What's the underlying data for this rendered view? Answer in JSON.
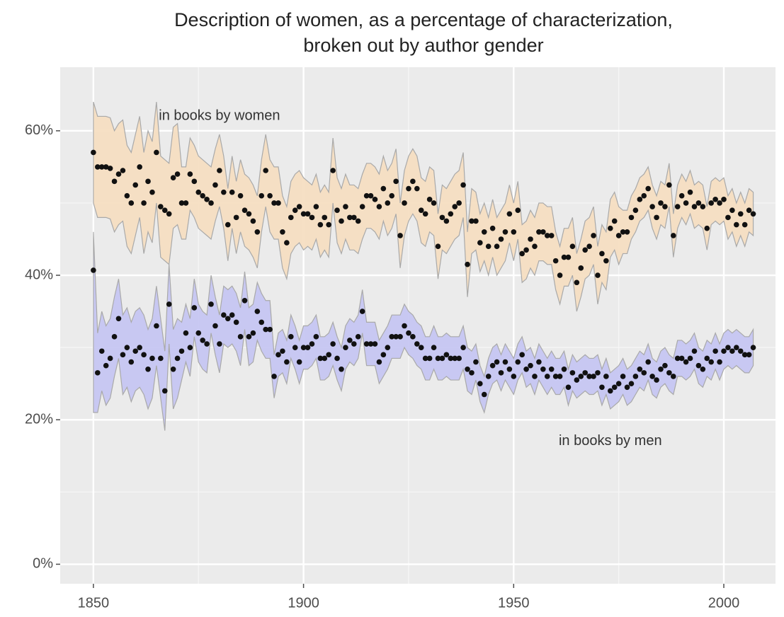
{
  "chart_data": {
    "type": "scatter",
    "title": [
      "Description of women, as a percentage of characterization,",
      "broken out by author gender"
    ],
    "xlim": [
      1842.1,
      2012.3
    ],
    "ylim": [
      -2.7,
      68.8
    ],
    "xticks": [
      1850,
      1900,
      1950,
      2000
    ],
    "yticks": [
      {
        "value": 0,
        "label": "0%"
      },
      {
        "value": 20,
        "label": "20%"
      },
      {
        "value": 40,
        "label": "40%"
      },
      {
        "value": 60,
        "label": "60%"
      }
    ],
    "xminor": [
      1875,
      1925,
      1975
    ],
    "yminor": [
      10,
      30,
      50
    ],
    "grid": true,
    "x": [
      1850,
      1851,
      1852,
      1853,
      1854,
      1855,
      1856,
      1857,
      1858,
      1859,
      1860,
      1861,
      1862,
      1863,
      1864,
      1865,
      1866,
      1867,
      1868,
      1869,
      1870,
      1871,
      1872,
      1873,
      1874,
      1875,
      1876,
      1877,
      1878,
      1879,
      1880,
      1881,
      1882,
      1883,
      1884,
      1885,
      1886,
      1887,
      1888,
      1889,
      1890,
      1891,
      1892,
      1893,
      1894,
      1895,
      1896,
      1897,
      1898,
      1899,
      1900,
      1901,
      1902,
      1903,
      1904,
      1905,
      1906,
      1907,
      1908,
      1909,
      1910,
      1911,
      1912,
      1913,
      1914,
      1915,
      1916,
      1917,
      1918,
      1919,
      1920,
      1921,
      1922,
      1923,
      1924,
      1925,
      1926,
      1927,
      1928,
      1929,
      1930,
      1931,
      1932,
      1933,
      1934,
      1935,
      1936,
      1937,
      1938,
      1939,
      1940,
      1941,
      1942,
      1943,
      1944,
      1945,
      1946,
      1947,
      1948,
      1949,
      1950,
      1951,
      1952,
      1953,
      1954,
      1955,
      1956,
      1957,
      1958,
      1959,
      1960,
      1961,
      1962,
      1963,
      1964,
      1965,
      1966,
      1967,
      1968,
      1969,
      1970,
      1971,
      1972,
      1973,
      1974,
      1975,
      1976,
      1977,
      1978,
      1979,
      1980,
      1981,
      1982,
      1983,
      1984,
      1985,
      1986,
      1987,
      1988,
      1989,
      1990,
      1991,
      1992,
      1993,
      1994,
      1995,
      1996,
      1997,
      1998,
      1999,
      2000,
      2001,
      2002,
      2003,
      2004,
      2005,
      2006,
      2007
    ],
    "series": [
      {
        "name": "in books by women",
        "label_pos": [
          1880,
          62
        ],
        "color": "#111111",
        "band_color": "#f6dec2",
        "values": [
          57,
          55,
          55,
          55,
          54.8,
          53,
          54,
          54.5,
          51,
          50,
          52.5,
          55,
          50,
          53,
          51.5,
          57,
          49.5,
          49,
          48.5,
          53.5,
          54,
          50,
          50,
          54,
          53,
          51.5,
          51,
          50.5,
          50,
          52.5,
          54.5,
          51.5,
          47,
          51.5,
          48,
          51,
          49,
          48.5,
          47.5,
          46,
          51,
          54.5,
          51,
          50,
          50,
          46,
          44.5,
          48,
          49,
          49.5,
          48.5,
          48.5,
          48,
          49.5,
          47,
          48,
          47,
          54.5,
          49,
          47.5,
          49.5,
          48,
          48,
          47.5,
          49.5,
          51,
          51,
          50.5,
          49.5,
          52,
          50,
          51,
          53,
          45.5,
          50,
          52,
          53,
          52,
          49,
          48.5,
          50.5,
          50,
          44,
          48,
          47.5,
          48.5,
          49.5,
          50,
          52.5,
          41.5,
          47.5,
          47.5,
          44.5,
          46,
          44,
          46.5,
          44,
          45,
          46,
          48.5,
          46,
          49,
          43,
          43.5,
          45,
          44,
          46,
          46,
          45.5,
          45.5,
          42,
          40,
          42.5,
          42.5,
          44,
          39,
          41,
          43.5,
          44,
          45.5,
          40,
          43,
          42,
          46.5,
          47.5,
          45.5,
          46,
          46,
          48,
          49,
          50.5,
          51,
          52,
          49.5,
          48,
          50,
          49.5,
          52.5,
          45.5,
          49.5,
          51,
          50,
          51.5,
          49.5,
          50,
          49.5,
          46.5,
          50,
          50.5,
          50,
          50.5,
          48,
          49,
          47,
          48.5,
          47,
          49,
          48.5
        ],
        "lower": [
          50,
          48,
          48,
          48,
          47.8,
          46,
          47,
          47.5,
          44,
          43,
          45.5,
          48,
          43,
          46,
          44.5,
          50,
          42.5,
          42,
          41.5,
          46.5,
          47,
          45,
          45,
          49,
          48,
          46.5,
          46,
          45.5,
          45,
          47.5,
          49.5,
          46.5,
          42,
          46.5,
          43,
          46,
          44,
          43.5,
          42.5,
          41,
          46,
          49.5,
          46,
          45,
          45,
          41,
          39.5,
          43,
          44,
          44.5,
          43.5,
          44,
          43.5,
          45,
          42.5,
          43.5,
          42.5,
          50,
          44.5,
          43,
          45,
          43.5,
          43.5,
          43,
          45,
          46.5,
          46.5,
          46,
          45,
          47.5,
          45.5,
          46.5,
          48.5,
          41,
          45.5,
          47.5,
          48.5,
          47.5,
          44.5,
          44,
          46,
          45.5,
          39.5,
          43.5,
          43,
          44,
          45,
          45.5,
          48,
          37,
          43,
          43.5,
          40.5,
          42,
          40,
          42.5,
          40,
          41,
          42,
          44.5,
          42,
          45,
          39,
          39.5,
          41,
          40,
          42,
          42,
          41.5,
          41.5,
          38,
          36,
          38.5,
          38.5,
          40,
          35,
          37,
          39.5,
          40,
          41.5,
          36,
          39,
          38,
          42.5,
          43.5,
          41.5,
          43,
          43,
          45,
          46,
          47.5,
          48,
          49,
          46.5,
          45,
          47,
          46.5,
          49.5,
          42.5,
          46.5,
          48,
          47,
          48.5,
          46.5,
          47,
          46.5,
          43.5,
          47,
          47.5,
          47,
          47.5,
          45,
          46,
          44,
          45.5,
          44,
          46,
          45.5
        ],
        "upper": [
          64,
          62,
          62,
          62,
          61.8,
          60,
          61,
          61.5,
          58,
          57,
          59.5,
          62,
          57,
          60,
          58.5,
          64,
          56.5,
          56,
          55.5,
          60.5,
          61,
          55,
          55,
          59,
          58,
          56.5,
          56,
          55.5,
          55,
          57.5,
          59.5,
          56.5,
          52,
          56.5,
          53,
          56,
          54,
          53.5,
          52.5,
          51,
          56,
          59.5,
          56,
          55,
          55,
          51,
          49.5,
          53,
          54,
          54.5,
          53.5,
          53,
          52.5,
          54,
          51.5,
          52.5,
          51.5,
          59,
          53.5,
          52,
          54,
          52.5,
          52.5,
          52,
          54,
          55.5,
          55.5,
          55,
          54,
          56.5,
          54.5,
          55.5,
          57.5,
          50,
          54.5,
          56.5,
          57.5,
          56.5,
          53.5,
          53,
          55,
          54.5,
          48.5,
          52.5,
          52,
          53,
          54,
          54.5,
          57,
          46,
          52,
          51.5,
          48.5,
          50,
          48,
          50.5,
          48,
          49,
          50,
          52.5,
          50,
          53,
          47,
          47.5,
          49,
          48,
          50,
          50,
          49.5,
          49.5,
          46,
          44,
          46.5,
          46.5,
          48,
          43,
          45,
          47.5,
          48,
          49.5,
          44,
          47,
          46,
          50.5,
          51.5,
          49.5,
          49,
          49,
          51,
          52,
          53.5,
          54,
          55,
          52.5,
          51,
          53,
          52.5,
          55.5,
          48.5,
          52.5,
          54,
          53,
          54.5,
          52.5,
          53,
          52.5,
          49.5,
          53,
          53.5,
          53,
          53.5,
          51,
          52,
          50,
          51.5,
          50,
          52,
          51.5
        ]
      },
      {
        "name": "in books by men",
        "label_pos": [
          1973,
          17
        ],
        "color": "#111111",
        "band_color": "#c6c6f2",
        "values": [
          40.7,
          26.5,
          29.5,
          27.5,
          28.5,
          31.5,
          34,
          29,
          30,
          28,
          29.5,
          30,
          29,
          27,
          28.5,
          33,
          28.5,
          24,
          36,
          27,
          28.5,
          29.5,
          32,
          30,
          35.5,
          32,
          31,
          30.5,
          36,
          33,
          30.5,
          34.5,
          34,
          34.5,
          33.5,
          31.5,
          36.5,
          31.5,
          32,
          35,
          33.5,
          32.5,
          32.5,
          26,
          29,
          29.5,
          28,
          31.5,
          30,
          28,
          30,
          30,
          30.5,
          31.5,
          28.5,
          28.5,
          29,
          30.5,
          28.5,
          27,
          30,
          31,
          30.5,
          31.5,
          35,
          30.5,
          30.5,
          30.5,
          28,
          29,
          30,
          31.5,
          31.5,
          31.5,
          33,
          32,
          31.5,
          30.5,
          30,
          28.5,
          28.5,
          30,
          28.5,
          28.5,
          29,
          28.5,
          28.5,
          28.5,
          30,
          27,
          26.5,
          28,
          25,
          23.5,
          26,
          27.5,
          28,
          26.5,
          28,
          27,
          26,
          28,
          29,
          27,
          27.5,
          26,
          28,
          27,
          26,
          27,
          26,
          26,
          27,
          24.5,
          26.5,
          25.5,
          26,
          26.5,
          26,
          26,
          26.5,
          24.5,
          26,
          24,
          24.5,
          25,
          26,
          24.5,
          25,
          26,
          27,
          26.5,
          28,
          26,
          25.5,
          27,
          27.5,
          26.5,
          26,
          28.5,
          28.5,
          28,
          28.5,
          29.5,
          27.5,
          27,
          28.5,
          28,
          29.5,
          28,
          29.5,
          30,
          29.5,
          30,
          29.5,
          29,
          29,
          30
        ],
        "lower": [
          21,
          21,
          24,
          22,
          23,
          26,
          28.5,
          23.5,
          24.5,
          22.5,
          24,
          24.5,
          23.5,
          21.5,
          23,
          27.5,
          23,
          18.5,
          30.5,
          21.5,
          23,
          25.5,
          28,
          26,
          31.5,
          28,
          27,
          26.5,
          32,
          29,
          26.5,
          30.5,
          30,
          30.5,
          29.5,
          27.5,
          32.5,
          27.5,
          28,
          31,
          29.5,
          28.5,
          28.5,
          23,
          26,
          26.5,
          25,
          28.5,
          27,
          25,
          27,
          27,
          27.5,
          28.5,
          25.5,
          25.5,
          26,
          27.5,
          25.5,
          24,
          27,
          28,
          27.5,
          28.5,
          32,
          27.5,
          27.5,
          27.5,
          25,
          26,
          27,
          28.5,
          28.5,
          28.5,
          30,
          29,
          28.5,
          27.5,
          27,
          25.5,
          25.5,
          27,
          25.5,
          25.5,
          26,
          25.5,
          25.5,
          25.5,
          27,
          24,
          23.5,
          25.5,
          22.5,
          21,
          23.5,
          25,
          25.5,
          24,
          25.5,
          24.5,
          23.5,
          25.5,
          26.5,
          24.5,
          25,
          23.5,
          25.5,
          24.5,
          23.5,
          24.5,
          23.5,
          23.5,
          24.5,
          22,
          24,
          23,
          23.5,
          24,
          23.5,
          23.5,
          24,
          22,
          23.5,
          21.5,
          22,
          22.5,
          23.5,
          22,
          22.5,
          23.5,
          24.5,
          24,
          25.5,
          23.5,
          23,
          24.5,
          25,
          24,
          23.5,
          26,
          26,
          25.5,
          26,
          27,
          25,
          24.5,
          26,
          25.5,
          27,
          25.5,
          27,
          27.5,
          27,
          27.5,
          27,
          26.5,
          26.5,
          27.5
        ],
        "upper": [
          46,
          32,
          35,
          33,
          34,
          37,
          39.5,
          34.5,
          35.5,
          33.5,
          35,
          35.5,
          34.5,
          32.5,
          34,
          38.5,
          34,
          29.5,
          41.5,
          32.5,
          34,
          33.5,
          36,
          34,
          39.5,
          36,
          35,
          34.5,
          40,
          37,
          34.5,
          38.5,
          38,
          38.5,
          37.5,
          35.5,
          40.5,
          35.5,
          36,
          39,
          37.5,
          36.5,
          36.5,
          29,
          32,
          32.5,
          31,
          34.5,
          33,
          31,
          33,
          33,
          33.5,
          34.5,
          31.5,
          31.5,
          32,
          33.5,
          31.5,
          30,
          33,
          34,
          33.5,
          34.5,
          38,
          33.5,
          33.5,
          33.5,
          31,
          32,
          33,
          34.5,
          34.5,
          34.5,
          36,
          35,
          34.5,
          33.5,
          33,
          31.5,
          31.5,
          33,
          31.5,
          31.5,
          32,
          31.5,
          31.5,
          31.5,
          33,
          30,
          29.5,
          30.5,
          27.5,
          26,
          28.5,
          30,
          30.5,
          29,
          30.5,
          29.5,
          28.5,
          30.5,
          31.5,
          29.5,
          30,
          28.5,
          30.5,
          29.5,
          28.5,
          29.5,
          28.5,
          28.5,
          29.5,
          27,
          29,
          28,
          28.5,
          29,
          28.5,
          28.5,
          29,
          27,
          28.5,
          26.5,
          27,
          27.5,
          28.5,
          27,
          27.5,
          28.5,
          29.5,
          29,
          30.5,
          28.5,
          28,
          29.5,
          30,
          29,
          28.5,
          31,
          31,
          30.5,
          31,
          32,
          30,
          29.5,
          31,
          30.5,
          32,
          30.5,
          32,
          32.5,
          32,
          32.5,
          32,
          31.5,
          31.5,
          32.5
        ]
      }
    ]
  }
}
